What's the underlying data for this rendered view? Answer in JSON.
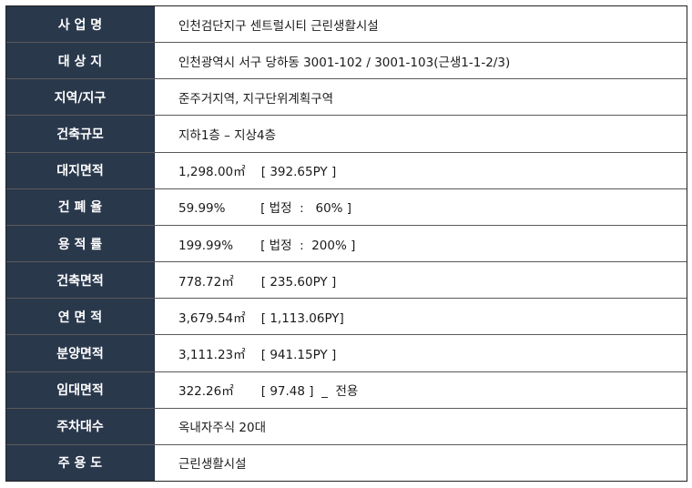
{
  "rows": [
    {
      "label": "사 업 명",
      "value": "인천검단지구 센트럴시티 근린생활시설"
    },
    {
      "label": "대 상 지",
      "value": "인천광역시 서구 당하동 3001-102 / 3001-103(근생1-1-2/3)"
    },
    {
      "label": "지역/지구",
      "value": "준주거지역, 지구단위계획구역"
    },
    {
      "label": "건축규모",
      "value": "지하1층 – 지상4층"
    },
    {
      "label": "대지면적",
      "value": "1,298.00㎡    [ 392.65PY ]"
    },
    {
      "label": "건 폐 율",
      "value": "59.99%         [ 법정  :   60% ]"
    },
    {
      "label": "용 적 률",
      "value": "199.99%       [ 법정  :  200% ]"
    },
    {
      "label": "건축면적",
      "value": "778.72㎡       [ 235.60PY ]"
    },
    {
      "label": "연 면 적",
      "value": "3,679.54㎡    [ 1,113.06PY]"
    },
    {
      "label": "분양면적",
      "value": "3,111.23㎡    [ 941.15PY ]"
    },
    {
      "label": "임대면적",
      "value": "322.26㎡       [ 97.48 ]  _  전용"
    },
    {
      "label": "주차대수",
      "value": "옥내자주식 20대"
    },
    {
      "label": "주 용 도",
      "value": "근린생활시설"
    }
  ]
}
